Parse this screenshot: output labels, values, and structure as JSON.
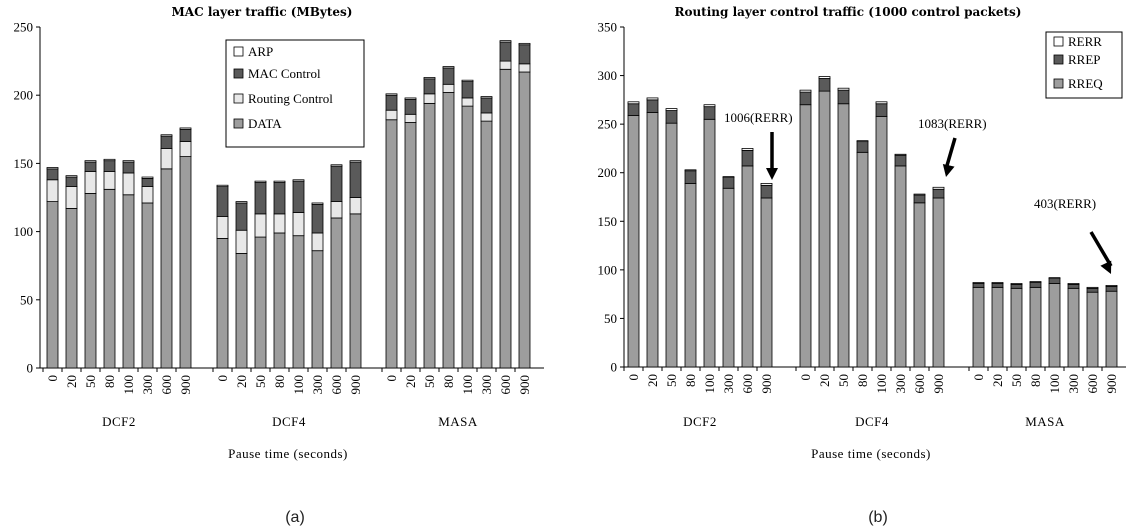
{
  "chart_data": [
    {
      "type": "bar",
      "stacked": true,
      "title": "MAC layer traffic (MBytes)",
      "xlabel": "Pause time (seconds)",
      "ylabel": "",
      "ylim": [
        0,
        250
      ],
      "yticks": [
        0,
        50,
        100,
        150,
        200,
        250
      ],
      "caption": "(a)",
      "legend_position": "top-center",
      "groups": [
        "DCF2",
        "DCF4",
        "MASA"
      ],
      "categories": [
        "0",
        "20",
        "50",
        "80",
        "100",
        "300",
        "600",
        "900"
      ],
      "series": [
        {
          "name": "DATA",
          "color": "#9d9d9d",
          "values": [
            [
              122,
              117,
              128,
              131,
              127,
              121,
              146,
              155
            ],
            [
              95,
              84,
              96,
              99,
              97,
              86,
              110,
              113
            ],
            [
              182,
              180,
              194,
              202,
              192,
              181,
              219,
              217
            ]
          ]
        },
        {
          "name": "Routing Control",
          "color": "#e8e8e8",
          "values": [
            [
              16,
              16,
              16,
              13,
              16,
              12,
              15,
              11
            ],
            [
              16,
              17,
              17,
              14,
              17,
              13,
              12,
              12
            ],
            [
              7,
              6,
              7,
              6,
              6,
              6,
              6,
              6
            ]
          ]
        },
        {
          "name": "MAC Control",
          "color": "#5a5a5a",
          "values": [
            [
              8,
              7,
              7,
              8,
              8,
              6,
              9,
              9
            ],
            [
              22,
              20,
              23,
              23,
              23,
              21,
              26,
              26
            ],
            [
              11,
              11,
              11,
              12,
              12,
              11,
              14,
              14
            ]
          ]
        },
        {
          "name": "ARP",
          "color": "#ffffff",
          "values": [
            [
              1,
              1,
              1,
              1,
              1,
              1,
              1,
              1
            ],
            [
              1,
              1,
              1,
              1,
              1,
              1,
              1,
              1
            ],
            [
              1,
              1,
              1,
              1,
              1,
              1,
              1,
              1
            ]
          ]
        }
      ],
      "annotations": []
    },
    {
      "type": "bar",
      "stacked": true,
      "title": "Routing layer control traffic (1000 control packets)",
      "xlabel": "Pause time (seconds)",
      "ylabel": "",
      "ylim": [
        0,
        350
      ],
      "yticks": [
        0,
        50,
        100,
        150,
        200,
        250,
        300,
        350
      ],
      "caption": "(b)",
      "legend_position": "top-right",
      "groups": [
        "DCF2",
        "DCF4",
        "MASA"
      ],
      "categories": [
        "0",
        "20",
        "50",
        "80",
        "100",
        "300",
        "600",
        "900"
      ],
      "series": [
        {
          "name": "RREQ",
          "color": "#9d9d9d",
          "values": [
            [
              259,
              262,
              251,
              189,
              255,
              184,
              207,
              174
            ],
            [
              270,
              284,
              271,
              221,
              258,
              207,
              169,
              174
            ],
            [
              82,
              82,
              81,
              82,
              86,
              81,
              77,
              78
            ]
          ]
        },
        {
          "name": "RREP",
          "color": "#5a5a5a",
          "values": [
            [
              12,
              13,
              13,
              13,
              13,
              11,
              16,
              13
            ],
            [
              13,
              13,
              14,
              11,
              13,
              11,
              8,
              9
            ],
            [
              4,
              4,
              4,
              5,
              5,
              4,
              4,
              5
            ]
          ]
        },
        {
          "name": "RERR",
          "color": "#ffffff",
          "values": [
            [
              2,
              2,
              2,
              1,
              2,
              1,
              2,
              2
            ],
            [
              2,
              2,
              2,
              1,
              2,
              1,
              1,
              2
            ],
            [
              1,
              1,
              1,
              1,
              1,
              1,
              1,
              1
            ]
          ]
        }
      ],
      "annotations": [
        {
          "text": "1006(RERR)",
          "group": 0,
          "index": 7
        },
        {
          "text": "1083(RERR)",
          "group": 1,
          "index": 7
        },
        {
          "text": "403(RERR)",
          "group": 2,
          "index": 7
        }
      ]
    }
  ]
}
